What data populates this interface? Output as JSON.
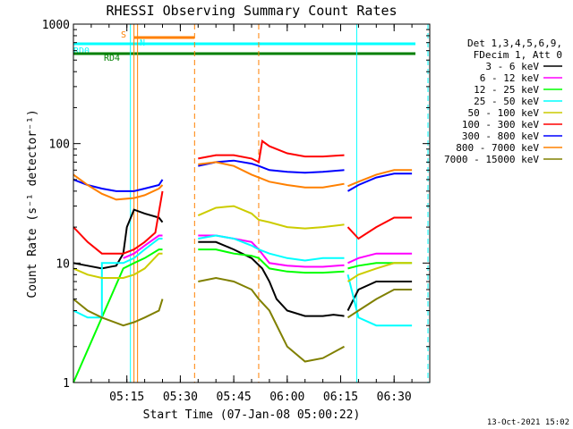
{
  "chart_data": {
    "type": "line",
    "title": "RHESSI Observing Summary Count Rates",
    "xlabel": "Start Time (07-Jan-08 05:00:22)",
    "ylabel": "Count Rate (s⁻¹ detector⁻¹)",
    "y_scale": "log",
    "ylim": [
      1,
      1000
    ],
    "xlim_minutes": [
      0,
      100
    ],
    "x_ticks": [
      {
        "label": "05:15",
        "minute": 15
      },
      {
        "label": "05:30",
        "minute": 30
      },
      {
        "label": "05:45",
        "minute": 45
      },
      {
        "label": "06:00",
        "minute": 60
      },
      {
        "label": "06:15",
        "minute": 75
      },
      {
        "label": "06:30",
        "minute": 90
      }
    ],
    "y_ticks": [
      {
        "label": "1",
        "value": 1
      },
      {
        "label": "10",
        "value": 10
      },
      {
        "label": "100",
        "value": 100
      },
      {
        "label": "1000",
        "value": 1000
      }
    ],
    "legend_title": [
      "Det 1,3,4,5,6,9,",
      "FDecim 1, Att 0"
    ],
    "legend_position": "right",
    "gaps_minutes": [
      [
        25,
        35
      ],
      [
        76,
        77
      ]
    ],
    "series": [
      {
        "name": "3 - 6 keV",
        "color": "#000000",
        "points": [
          [
            0,
            10
          ],
          [
            4,
            9.5
          ],
          [
            8,
            9
          ],
          [
            12,
            9.5
          ],
          [
            14,
            12
          ],
          [
            15,
            20
          ],
          [
            17,
            28
          ],
          [
            20,
            26
          ],
          [
            24,
            24
          ],
          [
            25,
            22
          ],
          [
            35,
            15
          ],
          [
            40,
            15
          ],
          [
            45,
            13
          ],
          [
            50,
            11
          ],
          [
            53,
            9
          ],
          [
            55,
            7
          ],
          [
            57,
            5
          ],
          [
            60,
            4
          ],
          [
            65,
            3.6
          ],
          [
            70,
            3.6
          ],
          [
            73,
            3.7
          ],
          [
            76,
            3.6
          ],
          [
            77,
            4
          ],
          [
            80,
            6
          ],
          [
            85,
            7
          ],
          [
            90,
            7
          ],
          [
            95,
            7
          ]
        ]
      },
      {
        "name": "6 - 12 keV",
        "color": "#ff00ff",
        "points": [
          [
            14,
            11
          ],
          [
            17,
            12
          ],
          [
            20,
            14
          ],
          [
            24,
            17
          ],
          [
            25,
            17
          ],
          [
            35,
            17
          ],
          [
            40,
            17
          ],
          [
            45,
            16
          ],
          [
            50,
            15
          ],
          [
            52,
            13
          ],
          [
            55,
            10
          ],
          [
            60,
            9.5
          ],
          [
            65,
            9.3
          ],
          [
            70,
            9.3
          ],
          [
            76,
            9.6
          ],
          [
            77,
            10
          ],
          [
            80,
            11
          ],
          [
            85,
            12
          ],
          [
            90,
            12
          ],
          [
            95,
            12
          ]
        ]
      },
      {
        "name": "12 - 25 keV",
        "color": "#00ff00",
        "points": [
          [
            0,
            1
          ],
          [
            14,
            9
          ],
          [
            17,
            10
          ],
          [
            20,
            11
          ],
          [
            24,
            13
          ],
          [
            25,
            13
          ],
          [
            35,
            13
          ],
          [
            40,
            13
          ],
          [
            45,
            12
          ],
          [
            50,
            11.5
          ],
          [
            52,
            11
          ],
          [
            55,
            9
          ],
          [
            60,
            8.5
          ],
          [
            65,
            8.3
          ],
          [
            70,
            8.3
          ],
          [
            76,
            8.5
          ],
          [
            77,
            9
          ],
          [
            80,
            9.5
          ],
          [
            85,
            10
          ],
          [
            90,
            10
          ],
          [
            95,
            10
          ]
        ]
      },
      {
        "name": "25 - 50 keV",
        "color": "#00ffff",
        "points": [
          [
            0,
            4
          ],
          [
            4,
            3.5
          ],
          [
            8,
            3.5
          ],
          [
            8,
            10
          ],
          [
            10,
            10
          ],
          [
            14,
            10
          ],
          [
            17,
            11
          ],
          [
            20,
            13
          ],
          [
            24,
            16
          ],
          [
            25,
            16
          ],
          [
            35,
            16
          ],
          [
            40,
            17
          ],
          [
            45,
            16
          ],
          [
            50,
            14
          ],
          [
            52,
            13
          ],
          [
            55,
            12
          ],
          [
            60,
            11
          ],
          [
            65,
            10.5
          ],
          [
            70,
            11
          ],
          [
            76,
            11
          ],
          [
            77,
            8
          ],
          [
            80,
            3.5
          ],
          [
            85,
            3
          ],
          [
            90,
            3
          ],
          [
            95,
            3
          ]
        ]
      },
      {
        "name": "50 - 100 keV",
        "color": "#cccc00",
        "points": [
          [
            0,
            9
          ],
          [
            4,
            8
          ],
          [
            8,
            7.5
          ],
          [
            14,
            7.5
          ],
          [
            17,
            8
          ],
          [
            20,
            9
          ],
          [
            24,
            12
          ],
          [
            25,
            12
          ],
          [
            35,
            25
          ],
          [
            40,
            29
          ],
          [
            45,
            30
          ],
          [
            50,
            26
          ],
          [
            52,
            23
          ],
          [
            55,
            22
          ],
          [
            60,
            20
          ],
          [
            65,
            19.5
          ],
          [
            70,
            20
          ],
          [
            76,
            21
          ],
          [
            77,
            7
          ],
          [
            80,
            8
          ],
          [
            85,
            9
          ],
          [
            90,
            10
          ],
          [
            95,
            10
          ]
        ]
      },
      {
        "name": "100 - 300 keV",
        "color": "#ff0000",
        "points": [
          [
            0,
            20
          ],
          [
            4,
            15
          ],
          [
            8,
            12
          ],
          [
            14,
            12
          ],
          [
            17,
            13
          ],
          [
            20,
            15
          ],
          [
            23,
            18
          ],
          [
            25,
            40
          ],
          [
            35,
            75
          ],
          [
            40,
            80
          ],
          [
            45,
            80
          ],
          [
            50,
            75
          ],
          [
            52,
            70
          ],
          [
            53,
            105
          ],
          [
            55,
            95
          ],
          [
            60,
            83
          ],
          [
            65,
            78
          ],
          [
            70,
            78
          ],
          [
            76,
            80
          ],
          [
            77,
            20
          ],
          [
            80,
            16
          ],
          [
            85,
            20
          ],
          [
            90,
            24
          ],
          [
            95,
            24
          ]
        ]
      },
      {
        "name": "300 - 800 keV",
        "color": "#0000ff",
        "points": [
          [
            0,
            50
          ],
          [
            4,
            45
          ],
          [
            8,
            42
          ],
          [
            12,
            40
          ],
          [
            17,
            40
          ],
          [
            20,
            42
          ],
          [
            24,
            45
          ],
          [
            25,
            50
          ],
          [
            35,
            65
          ],
          [
            40,
            70
          ],
          [
            45,
            72
          ],
          [
            50,
            68
          ],
          [
            52,
            65
          ],
          [
            55,
            60
          ],
          [
            60,
            58
          ],
          [
            65,
            57
          ],
          [
            70,
            58
          ],
          [
            76,
            60
          ],
          [
            77,
            40
          ],
          [
            80,
            45
          ],
          [
            85,
            52
          ],
          [
            90,
            56
          ],
          [
            95,
            56
          ]
        ]
      },
      {
        "name": "800 - 7000 keV",
        "color": "#ff8000",
        "points": [
          [
            0,
            55
          ],
          [
            4,
            45
          ],
          [
            8,
            38
          ],
          [
            12,
            34
          ],
          [
            17,
            35
          ],
          [
            20,
            37
          ],
          [
            24,
            42
          ],
          [
            25,
            45
          ],
          [
            35,
            67
          ],
          [
            40,
            70
          ],
          [
            45,
            65
          ],
          [
            50,
            55
          ],
          [
            52,
            52
          ],
          [
            55,
            48
          ],
          [
            60,
            45
          ],
          [
            65,
            43
          ],
          [
            70,
            43
          ],
          [
            76,
            46
          ],
          [
            77,
            44
          ],
          [
            80,
            48
          ],
          [
            85,
            55
          ],
          [
            90,
            60
          ],
          [
            95,
            60
          ]
        ]
      },
      {
        "name": "7000 - 15000 keV",
        "color": "#808000",
        "points": [
          [
            0,
            5
          ],
          [
            4,
            4
          ],
          [
            8,
            3.5
          ],
          [
            14,
            3
          ],
          [
            17,
            3.2
          ],
          [
            20,
            3.5
          ],
          [
            24,
            4
          ],
          [
            25,
            5
          ],
          [
            35,
            7
          ],
          [
            40,
            7.5
          ],
          [
            45,
            7
          ],
          [
            50,
            6
          ],
          [
            52,
            5
          ],
          [
            55,
            4
          ],
          [
            60,
            2
          ],
          [
            65,
            1.5
          ],
          [
            70,
            1.6
          ],
          [
            76,
            2
          ],
          [
            77,
            3.5
          ],
          [
            80,
            4
          ],
          [
            85,
            5
          ],
          [
            90,
            6
          ],
          [
            95,
            6
          ]
        ]
      }
    ],
    "flags": [
      {
        "label": "S",
        "color": "#ff8000",
        "minute_start": 17,
        "minute_end": 34
      },
      {
        "label": "N",
        "color": "#00ffff",
        "minute_start": 16.5,
        "minute_end": 17.2
      },
      {
        "label": "RD0",
        "color": "#00ffff",
        "minute_start": 0,
        "minute_end": 96
      },
      {
        "label": "RD4",
        "color": "#008000",
        "minute_start": 0,
        "minute_end": 96
      }
    ],
    "vertical_markers": [
      {
        "minute": 16,
        "color": "#00ffff",
        "style": "solid"
      },
      {
        "minute": 17,
        "color": "#ff8000",
        "style": "solid"
      },
      {
        "minute": 18,
        "color": "#ff8000",
        "style": "solid"
      },
      {
        "minute": 34,
        "color": "#ff8000",
        "style": "dashed"
      },
      {
        "minute": 52,
        "color": "#ff8000",
        "style": "dashed"
      },
      {
        "minute": 79.5,
        "color": "#00ffff",
        "style": "solid"
      },
      {
        "minute": 99.5,
        "color": "#00ffff",
        "style": "dashed"
      }
    ]
  },
  "footer": {
    "timestamp": "13-Oct-2021 15:02"
  }
}
